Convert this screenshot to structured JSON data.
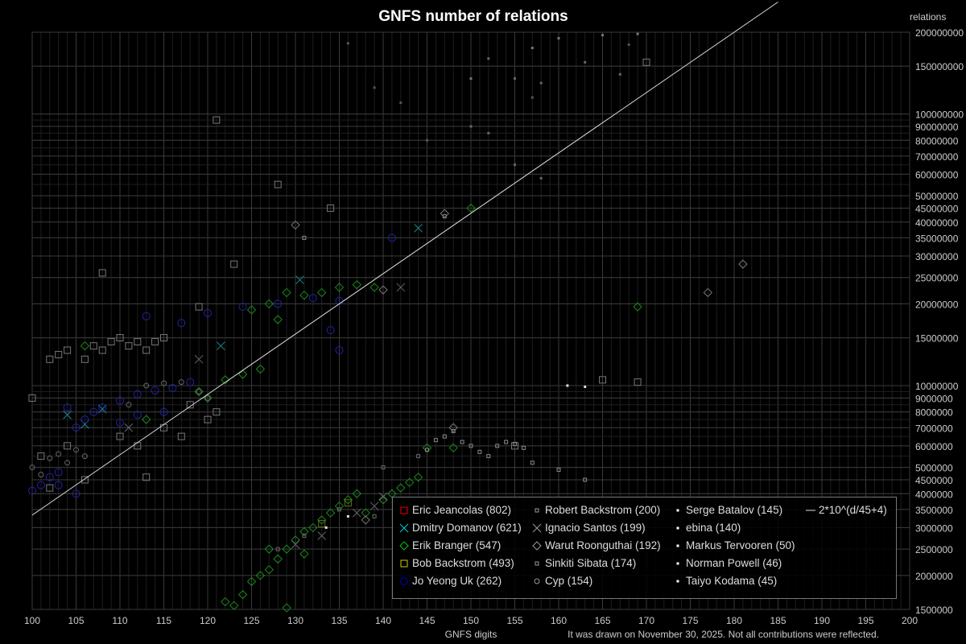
{
  "chart_data": {
    "type": "scatter",
    "title": "GNFS number of relations",
    "xlabel": "GNFS digits",
    "ylabel": "relations",
    "xlim": [
      100,
      200
    ],
    "ylim": [
      1500000,
      200000000
    ],
    "yscale": "log",
    "grid": true,
    "legend_position": "bottom-right",
    "x_ticks": [
      100,
      105,
      110,
      115,
      120,
      125,
      130,
      135,
      140,
      145,
      150,
      155,
      160,
      165,
      170,
      175,
      180,
      185,
      190,
      195,
      200
    ],
    "y_ticks": [
      200000000,
      150000000,
      100000000,
      90000000,
      80000000,
      70000000,
      60000000,
      50000000,
      45000000,
      40000000,
      35000000,
      30000000,
      25000000,
      20000000,
      15000000,
      10000000,
      9000000,
      8000000,
      7000000,
      6000000,
      5000000,
      4500000,
      4000000,
      3500000,
      3000000,
      2500000,
      2000000,
      1500000
    ],
    "footnote": "It was drawn on November 30, 2025. Not all contributions were reflected.",
    "trend_line": {
      "label": "2*10^(d/45+4)",
      "color": "#dddddd"
    },
    "series": [
      {
        "name": "Eric Jeancolas (802)",
        "marker": "square",
        "legend_color": "#ee0000",
        "color": "#777777",
        "points": [
          [
            100,
            9000000
          ],
          [
            102,
            12500000
          ],
          [
            103,
            13000000
          ],
          [
            104,
            13500000
          ],
          [
            106,
            12500000
          ],
          [
            107,
            14000000
          ],
          [
            108,
            13500000
          ],
          [
            109,
            14500000
          ],
          [
            110,
            15000000
          ],
          [
            111,
            14000000
          ],
          [
            112,
            14500000
          ],
          [
            113,
            13500000
          ],
          [
            114,
            14500000
          ],
          [
            115,
            15000000
          ],
          [
            108,
            26000000
          ],
          [
            119,
            19500000
          ],
          [
            115,
            7000000
          ],
          [
            117,
            6500000
          ],
          [
            110,
            6500000
          ],
          [
            112,
            6000000
          ],
          [
            120,
            7500000
          ],
          [
            121,
            8000000
          ],
          [
            123,
            28000000
          ],
          [
            128,
            55000000
          ],
          [
            134,
            45000000
          ],
          [
            155,
            6000000
          ],
          [
            165,
            10500000
          ],
          [
            169,
            10300000
          ],
          [
            170,
            155000000
          ],
          [
            121,
            95000000
          ],
          [
            104,
            6000000
          ],
          [
            101,
            5500000
          ],
          [
            106,
            4500000
          ],
          [
            113,
            4600000
          ],
          [
            102,
            4200000
          ],
          [
            118,
            8500000
          ]
        ]
      },
      {
        "name": "Dmitry Domanov (621)",
        "marker": "x",
        "legend_color": "#00cccc",
        "color": "#1a8a8a",
        "points": [
          [
            108,
            8200000
          ],
          [
            121.5,
            14000000
          ],
          [
            130.5,
            24500000
          ],
          [
            144,
            38000000
          ],
          [
            106,
            7200000
          ],
          [
            104,
            7800000
          ]
        ]
      },
      {
        "name": "Erik Branger (547)",
        "marker": "diamond",
        "legend_color": "#00cc00",
        "color": "#1a8a1a",
        "points": [
          [
            122,
            1600000
          ],
          [
            124,
            1700000
          ],
          [
            125,
            1900000
          ],
          [
            126,
            2000000
          ],
          [
            127,
            2100000
          ],
          [
            128,
            2300000
          ],
          [
            129,
            2500000
          ],
          [
            130,
            2700000
          ],
          [
            131,
            2900000
          ],
          [
            132,
            3000000
          ],
          [
            133,
            3200000
          ],
          [
            134,
            3400000
          ],
          [
            135,
            3600000
          ],
          [
            136,
            3800000
          ],
          [
            137,
            4000000
          ],
          [
            138,
            3400000
          ],
          [
            140,
            3800000
          ],
          [
            141,
            4000000
          ],
          [
            142,
            4200000
          ],
          [
            143,
            4400000
          ],
          [
            144,
            4600000
          ],
          [
            145,
            5900000
          ],
          [
            148,
            5900000
          ],
          [
            129,
            1520000
          ],
          [
            123,
            1550000
          ],
          [
            127,
            2500000
          ],
          [
            131,
            2400000
          ],
          [
            125,
            19000000
          ],
          [
            127,
            20000000
          ],
          [
            129,
            22000000
          ],
          [
            131,
            21500000
          ],
          [
            133,
            22000000
          ],
          [
            135,
            23000000
          ],
          [
            137,
            23500000
          ],
          [
            139,
            23000000
          ],
          [
            128,
            17500000
          ],
          [
            122,
            10500000
          ],
          [
            124,
            11000000
          ],
          [
            126,
            11500000
          ],
          [
            119,
            9500000
          ],
          [
            150,
            45000000
          ],
          [
            169,
            19500000
          ],
          [
            106,
            14000000
          ],
          [
            113,
            7500000
          ],
          [
            120,
            9000000
          ]
        ]
      },
      {
        "name": "Bob Backstrom (493)",
        "marker": "square",
        "legend_color": "#cccc00",
        "color": "#6a6a1a",
        "points": [
          [
            133,
            3100000
          ],
          [
            136,
            3700000
          ]
        ]
      },
      {
        "name": "Jo Yeong Uk (262)",
        "marker": "circle",
        "legend_color": "#0000cc",
        "color": "#2222aa",
        "points": [
          [
            100,
            4100000
          ],
          [
            101,
            4300000
          ],
          [
            102,
            4600000
          ],
          [
            103,
            4800000
          ],
          [
            104,
            8300000
          ],
          [
            105,
            7000000
          ],
          [
            106,
            7500000
          ],
          [
            107,
            8000000
          ],
          [
            108,
            8300000
          ],
          [
            110,
            8800000
          ],
          [
            112,
            9300000
          ],
          [
            114,
            9600000
          ],
          [
            115,
            8000000
          ],
          [
            116,
            9800000
          ],
          [
            118,
            10300000
          ],
          [
            113,
            18000000
          ],
          [
            117,
            17000000
          ],
          [
            120,
            18500000
          ],
          [
            124,
            19500000
          ],
          [
            128,
            20000000
          ],
          [
            132,
            21000000
          ],
          [
            135,
            20500000
          ],
          [
            141,
            35000000
          ],
          [
            134,
            16000000
          ],
          [
            135,
            13500000
          ],
          [
            110,
            7300000
          ],
          [
            112,
            7800000
          ],
          [
            103,
            4300000
          ],
          [
            105,
            4000000
          ]
        ]
      },
      {
        "name": "Robert Backstrom (200)",
        "marker": "small-square",
        "legend_color": "#999999",
        "color": "#888888",
        "points": [
          [
            145,
            5800000
          ],
          [
            146,
            6300000
          ],
          [
            147,
            6500000
          ],
          [
            148,
            6800000
          ],
          [
            149,
            6200000
          ],
          [
            150,
            6000000
          ],
          [
            151,
            5700000
          ],
          [
            152,
            5500000
          ],
          [
            153,
            6000000
          ],
          [
            154,
            6200000
          ],
          [
            155,
            6100000
          ],
          [
            156,
            5900000
          ],
          [
            157,
            5200000
          ],
          [
            160,
            4900000
          ],
          [
            163,
            4500000
          ],
          [
            147,
            42000000
          ],
          [
            131,
            35000000
          ]
        ]
      },
      {
        "name": "Ignacio Santos (199)",
        "marker": "x",
        "legend_color": "#999999",
        "color": "#666666",
        "points": [
          [
            137,
            3400000
          ],
          [
            139,
            3600000
          ],
          [
            140,
            3900000
          ],
          [
            142,
            23000000
          ],
          [
            119,
            12500000
          ],
          [
            111,
            7000000
          ],
          [
            130,
            2600000
          ],
          [
            133,
            2800000
          ]
        ]
      },
      {
        "name": "Warut Roonguthai (192)",
        "marker": "diamond",
        "legend_color": "#999999",
        "color": "#777777",
        "points": [
          [
            177,
            22000000
          ],
          [
            181,
            28000000
          ],
          [
            147,
            43000000
          ],
          [
            130,
            39000000
          ],
          [
            140,
            22500000
          ],
          [
            148,
            7000000
          ],
          [
            138,
            3200000
          ]
        ]
      },
      {
        "name": "Sinkiti Sibata (174)",
        "marker": "small-square",
        "legend_color": "#999999",
        "color": "#666666",
        "points": [
          [
            128,
            2500000
          ],
          [
            131,
            2800000
          ],
          [
            135,
            3500000
          ],
          [
            140,
            5000000
          ],
          [
            144,
            5500000
          ],
          [
            139,
            3300000
          ]
        ]
      },
      {
        "name": "Cyp (154)",
        "marker": "small-circle",
        "legend_color": "#999999",
        "color": "#666666",
        "points": [
          [
            100,
            5000000
          ],
          [
            101,
            4700000
          ],
          [
            102,
            5400000
          ],
          [
            103,
            5600000
          ],
          [
            104,
            5200000
          ],
          [
            105,
            5800000
          ],
          [
            106,
            5500000
          ],
          [
            111,
            8500000
          ],
          [
            113,
            10000000
          ],
          [
            115,
            10200000
          ],
          [
            117,
            10300000
          ],
          [
            119,
            9500000
          ],
          [
            120,
            9000000
          ]
        ]
      },
      {
        "name": "Serge Batalov (145)",
        "marker": "dot",
        "legend_color": "#ffffff",
        "color": "#777777",
        "points": [
          [
            160,
            190000000
          ],
          [
            165,
            195000000
          ],
          [
            169,
            197000000
          ],
          [
            157,
            175000000
          ],
          [
            150,
            135000000
          ]
        ]
      },
      {
        "name": "ebina (140)",
        "marker": "dot",
        "legend_color": "#ffffff",
        "color": "#666666",
        "points": [
          [
            155,
            135000000
          ],
          [
            158,
            130000000
          ],
          [
            152,
            160000000
          ],
          [
            163,
            155000000
          ],
          [
            167,
            140000000
          ]
        ]
      },
      {
        "name": "Markus Tervooren (50)",
        "marker": "dot",
        "legend_color": "#ffffff",
        "color": "#666666",
        "points": [
          [
            150,
            90000000
          ],
          [
            152,
            85000000
          ],
          [
            155,
            65000000
          ],
          [
            158,
            58000000
          ]
        ]
      },
      {
        "name": "Norman Powell (46)",
        "marker": "dot",
        "legend_color": "#ffffff",
        "color": "#dddddd",
        "points": [
          [
            161,
            10000000
          ],
          [
            163,
            9900000
          ],
          [
            133.5,
            3000000
          ],
          [
            136,
            3300000
          ]
        ]
      },
      {
        "name": "Taiyo Kodama (45)",
        "marker": "dot",
        "legend_color": "#ffffff",
        "color": "#555555",
        "points": [
          [
            136,
            182000000
          ],
          [
            139,
            125000000
          ],
          [
            142,
            110000000
          ],
          [
            145,
            80000000
          ],
          [
            157,
            115000000
          ],
          [
            168,
            180000000
          ]
        ]
      }
    ]
  }
}
